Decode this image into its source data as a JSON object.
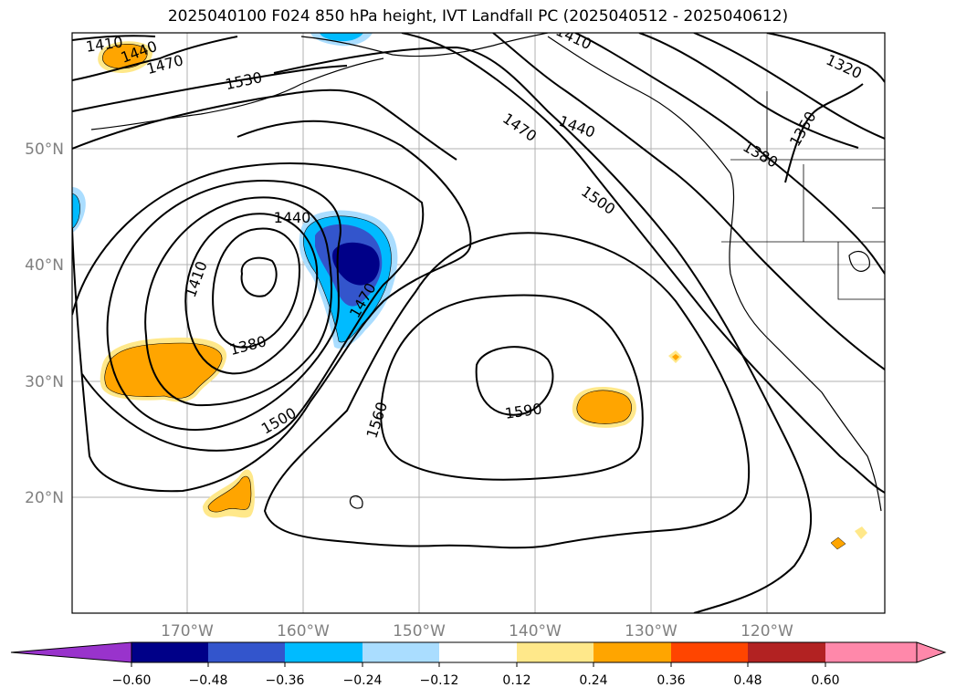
{
  "title": "2025040100 F024 850 hPa height, IVT Landfall PC (2025040512 - 2025040612)",
  "map": {
    "lat_labels": [
      "50°N",
      "40°N",
      "30°N",
      "20°N"
    ],
    "lon_labels": [
      "170°W",
      "160°W",
      "150°W",
      "140°W",
      "130°W",
      "120°W"
    ],
    "contour_labels": [
      "1410",
      "1440",
      "1470",
      "1530",
      "1470",
      "1440",
      "1500",
      "1380",
      "1350",
      "1320",
      "1410",
      "1440",
      "1470",
      "1380",
      "1500",
      "1560",
      "1590",
      "1410"
    ],
    "contour_levels_hPa_height_m": [
      1320,
      1350,
      1380,
      1410,
      1440,
      1470,
      1500,
      1530,
      1560,
      1590
    ]
  },
  "colorbar": {
    "tick_labels": [
      "−0.60",
      "−0.48",
      "−0.36",
      "−0.24",
      "−0.12",
      "0.12",
      "0.24",
      "0.36",
      "0.48",
      "0.60"
    ],
    "bins": [
      {
        "color": "#9933cc"
      },
      {
        "color": "#000088"
      },
      {
        "color": "#3355cc"
      },
      {
        "color": "#00bbff"
      },
      {
        "color": "#aaddff"
      },
      {
        "color": "#ffffff"
      },
      {
        "color": "#ffe88a"
      },
      {
        "color": "#ffa500"
      },
      {
        "color": "#ff4500"
      },
      {
        "color": "#b22222"
      },
      {
        "color": "#ff88aa"
      }
    ]
  }
}
